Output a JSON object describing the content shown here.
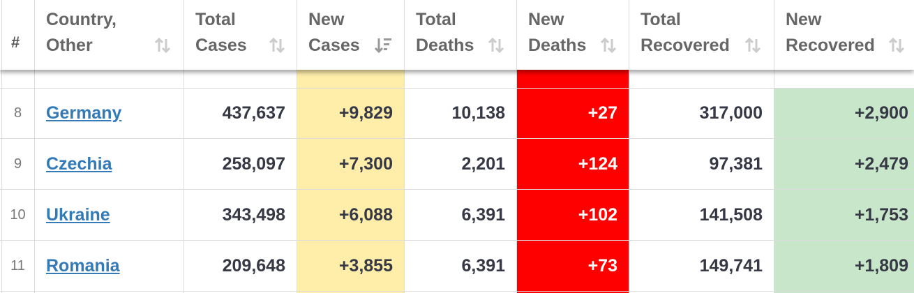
{
  "header": {
    "index_label": "#",
    "columns": [
      {
        "label": "Country,\nOther"
      },
      {
        "label": "Total\nCases"
      },
      {
        "label": "New\nCases"
      },
      {
        "label": "Total\nDeaths"
      },
      {
        "label": "New\nDeaths"
      },
      {
        "label": "Total\nRecovered"
      },
      {
        "label": "New\nRecovered"
      }
    ],
    "sorted_column": "New Cases"
  },
  "rows": [
    {
      "index": "8",
      "country": "Germany",
      "total_cases": "437,637",
      "new_cases": "+9,829",
      "total_deaths": "10,138",
      "new_deaths": "+27",
      "total_recovered": "317,000",
      "new_recovered": "+2,900"
    },
    {
      "index": "9",
      "country": "Czechia",
      "total_cases": "258,097",
      "new_cases": "+7,300",
      "total_deaths": "2,201",
      "new_deaths": "+124",
      "total_recovered": "97,381",
      "new_recovered": "+2,479"
    },
    {
      "index": "10",
      "country": "Ukraine",
      "total_cases": "343,498",
      "new_cases": "+6,088",
      "total_deaths": "6,391",
      "new_deaths": "+102",
      "total_recovered": "141,508",
      "new_recovered": "+1,753"
    },
    {
      "index": "11",
      "country": "Romania",
      "total_cases": "209,648",
      "new_cases": "+3,855",
      "total_deaths": "6,391",
      "new_deaths": "+73",
      "total_recovered": "149,741",
      "new_recovered": "+1,809"
    }
  ],
  "colors": {
    "new_cases_bg": "#ffeeaa",
    "new_deaths_bg": "#ff0000",
    "new_recovered_bg": "#c8e6c9",
    "link": "#337ab7",
    "text": "#363945"
  }
}
